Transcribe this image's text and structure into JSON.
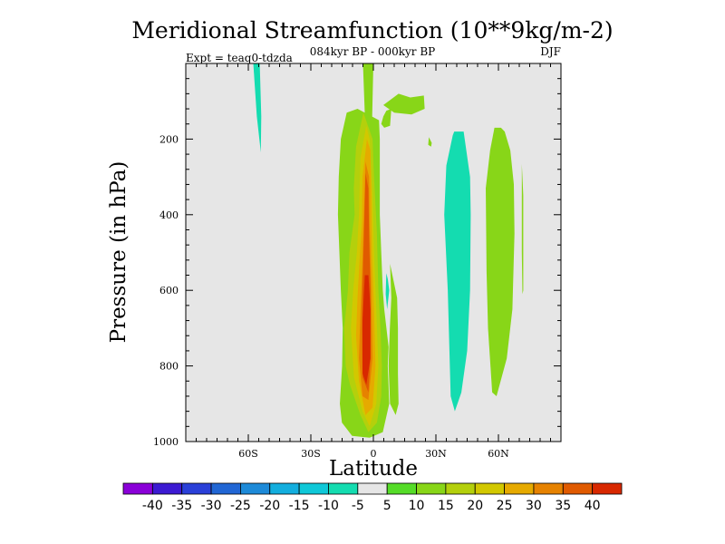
{
  "chart_data": {
    "type": "contour",
    "title": "Meridional Streamfunction (10**9kg/m-2)",
    "subtitle": "084kyr BP - 000kyr BP",
    "experiment": "Expt = teaq0-tdzda",
    "season": "DJF",
    "xlabel": "Latitude",
    "ylabel": "Pressure (in hPa)",
    "xlim": [
      -90,
      90
    ],
    "ylim": [
      1000,
      0
    ],
    "x_ticks": [
      {
        "value": -60,
        "label": "60S"
      },
      {
        "value": -30,
        "label": "30S"
      },
      {
        "value": 0,
        "label": "0"
      },
      {
        "value": 30,
        "label": "30N"
      },
      {
        "value": 60,
        "label": "60N"
      }
    ],
    "y_ticks": [
      {
        "value": 200,
        "label": "200"
      },
      {
        "value": 400,
        "label": "400"
      },
      {
        "value": 600,
        "label": "600"
      },
      {
        "value": 800,
        "label": "800"
      },
      {
        "value": 1000,
        "label": "1000"
      }
    ],
    "background_color": "#e6e6e6",
    "colorbar": {
      "labels": [
        "-40",
        "-35",
        "-30",
        "-25",
        "-20",
        "-15",
        "-10",
        "-5",
        "5",
        "10",
        "15",
        "20",
        "25",
        "30",
        "35",
        "40"
      ],
      "colors": [
        "#8a00d8",
        "#3c1ad2",
        "#2a40d8",
        "#2166d4",
        "#1d8ad8",
        "#13aede",
        "#0fc8d8",
        "#14dcb0",
        "#e6e6e6",
        "#55dc28",
        "#88d618",
        "#b4d00c",
        "#d2c800",
        "#e6aa00",
        "#e68200",
        "#e05a00",
        "#d82800"
      ]
    },
    "regions": [
      {
        "name": "sh-highlat-negative-cell",
        "level": -10,
        "polygon": [
          [
            -57.6,
            0
          ],
          [
            -54.5,
            0
          ],
          [
            -53.8,
            140
          ],
          [
            -54.0,
            235
          ],
          [
            -55.9,
            140
          ]
        ]
      },
      {
        "name": "tropical-band-tongue",
        "level": 10,
        "polygon": [
          [
            -5,
            0
          ],
          [
            0,
            0
          ],
          [
            -0.6,
            150
          ],
          [
            -4,
            150
          ]
        ]
      },
      {
        "name": "tropical-positive-band",
        "level": 10,
        "polygon": [
          [
            -7.6,
            120
          ],
          [
            -12.8,
            130
          ],
          [
            -15.6,
            200
          ],
          [
            -16.6,
            300
          ],
          [
            -17.0,
            400
          ],
          [
            -16.3,
            500
          ],
          [
            -15.6,
            600
          ],
          [
            -14.7,
            700
          ],
          [
            -15.0,
            800
          ],
          [
            -16.1,
            900
          ],
          [
            -15.1,
            950
          ],
          [
            -10.2,
            985
          ],
          [
            -1.8,
            990
          ],
          [
            4.5,
            975
          ],
          [
            7.6,
            900
          ],
          [
            6.9,
            800
          ],
          [
            7.3,
            750
          ],
          [
            5.2,
            650
          ],
          [
            4.5,
            600
          ],
          [
            3.8,
            500
          ],
          [
            3.1,
            400
          ],
          [
            3.1,
            300
          ],
          [
            3.1,
            200
          ],
          [
            2.7,
            150
          ]
        ]
      },
      {
        "name": "tropical-core-15",
        "level": 15,
        "polygon": [
          [
            -4.8,
            130
          ],
          [
            -8.3,
            220
          ],
          [
            -9.4,
            330
          ],
          [
            -9.0,
            400
          ],
          [
            -11.5,
            500
          ],
          [
            -12.2,
            600
          ],
          [
            -14.0,
            700
          ],
          [
            -13.3,
            800
          ],
          [
            -11.2,
            850
          ],
          [
            -6.2,
            930
          ],
          [
            -2.4,
            975
          ],
          [
            1.7,
            950
          ],
          [
            3.8,
            880
          ],
          [
            4.1,
            800
          ],
          [
            3.4,
            700
          ],
          [
            2.4,
            600
          ],
          [
            1.7,
            450
          ],
          [
            0.3,
            300
          ],
          [
            -0.4,
            200
          ]
        ]
      },
      {
        "name": "tropical-core-20",
        "level": 20,
        "polygon": [
          [
            -3.4,
            165
          ],
          [
            -6.2,
            250
          ],
          [
            -6.9,
            400
          ],
          [
            -7.9,
            500
          ],
          [
            -9.7,
            600
          ],
          [
            -10.8,
            700
          ],
          [
            -9.3,
            830
          ],
          [
            -5.2,
            920
          ],
          [
            -1.8,
            960
          ],
          [
            1.4,
            900
          ],
          [
            2.4,
            800
          ],
          [
            1.4,
            650
          ],
          [
            0.3,
            500
          ],
          [
            -0.4,
            350
          ],
          [
            -1.8,
            200
          ]
        ]
      },
      {
        "name": "tropical-core-25",
        "level": 25,
        "polygon": [
          [
            -3.1,
            200
          ],
          [
            -5.2,
            300
          ],
          [
            -5.5,
            420
          ],
          [
            -6.6,
            520
          ],
          [
            -7.6,
            620
          ],
          [
            -8.3,
            720
          ],
          [
            -6.9,
            840
          ],
          [
            -3.8,
            930
          ],
          [
            -0.4,
            910
          ],
          [
            1.0,
            800
          ],
          [
            0.3,
            650
          ],
          [
            -0.7,
            500
          ],
          [
            -1.0,
            350
          ],
          [
            -1.4,
            230
          ]
        ]
      },
      {
        "name": "tropical-core-30",
        "level": 30,
        "polygon": [
          [
            -3.8,
            260
          ],
          [
            -4.5,
            400
          ],
          [
            -5.5,
            560
          ],
          [
            -6.2,
            660
          ],
          [
            -6.9,
            780
          ],
          [
            -5.2,
            880
          ],
          [
            -2.4,
            890
          ],
          [
            -0.4,
            780
          ],
          [
            -1.0,
            600
          ],
          [
            -1.8,
            430
          ],
          [
            -2.1,
            300
          ]
        ]
      },
      {
        "name": "tropical-core-35",
        "level": 35,
        "polygon": [
          [
            -3.8,
            290
          ],
          [
            -4.5,
            450
          ],
          [
            -5.2,
            600
          ],
          [
            -5.5,
            700
          ],
          [
            -5.2,
            830
          ],
          [
            -2.4,
            870
          ],
          [
            -1.4,
            780
          ],
          [
            -1.4,
            600
          ],
          [
            -2.1,
            450
          ],
          [
            -2.4,
            330
          ]
        ]
      },
      {
        "name": "tropical-core-40",
        "level": 40,
        "polygon": [
          [
            -4.1,
            560
          ],
          [
            -5.2,
            680
          ],
          [
            -5.2,
            820
          ],
          [
            -3.4,
            850
          ],
          [
            -1.4,
            780
          ],
          [
            -1.4,
            650
          ],
          [
            -2.4,
            560
          ]
        ]
      },
      {
        "name": "tropical-patch-upper",
        "level": 10,
        "polygon": [
          [
            3.8,
            160
          ],
          [
            4.8,
            140
          ],
          [
            6.2,
            125
          ],
          [
            8.6,
            120
          ],
          [
            8.0,
            165
          ],
          [
            5.2,
            170
          ]
        ]
      },
      {
        "name": "tropical-patch-30n",
        "level": 10,
        "polygon": [
          [
            4.8,
            110
          ],
          [
            12.1,
            80
          ],
          [
            17.7,
            90
          ],
          [
            24.2,
            85
          ],
          [
            24.6,
            120
          ],
          [
            18.3,
            135
          ],
          [
            10.0,
            130
          ]
        ]
      },
      {
        "name": "tropical-patch-right",
        "level": 10,
        "polygon": [
          [
            26.6,
            195
          ],
          [
            28.0,
            210
          ],
          [
            27.7,
            220
          ],
          [
            26.3,
            215
          ]
        ]
      },
      {
        "name": "tropical-patch-small",
        "level": -10,
        "polygon": [
          [
            6.2,
            555
          ],
          [
            6.9,
            570
          ],
          [
            7.6,
            600
          ],
          [
            6.6,
            650
          ],
          [
            5.9,
            610
          ]
        ]
      },
      {
        "name": "tropical-patch-lower",
        "level": 10,
        "polygon": [
          [
            8.0,
            530
          ],
          [
            11.4,
            620
          ],
          [
            11.8,
            700
          ],
          [
            11.8,
            820
          ],
          [
            12.1,
            900
          ],
          [
            10.7,
            930
          ],
          [
            8.0,
            900
          ],
          [
            7.3,
            800
          ],
          [
            7.9,
            700
          ],
          [
            8.6,
            620
          ]
        ]
      },
      {
        "name": "nh-midlat-negative-cell",
        "level": -10,
        "polygon": [
          [
            38.1,
            190
          ],
          [
            35.0,
            270
          ],
          [
            34.0,
            400
          ],
          [
            35.7,
            600
          ],
          [
            36.4,
            740
          ],
          [
            37.1,
            880
          ],
          [
            39.1,
            920
          ],
          [
            42.2,
            870
          ],
          [
            45.0,
            760
          ],
          [
            46.4,
            600
          ],
          [
            46.7,
            400
          ],
          [
            46.4,
            300
          ],
          [
            43.3,
            180
          ],
          [
            38.8,
            180
          ]
        ]
      },
      {
        "name": "nh-subpolar-positive-cell",
        "level": 10,
        "polygon": [
          [
            58.1,
            170
          ],
          [
            56.0,
            230
          ],
          [
            53.9,
            330
          ],
          [
            54.3,
            550
          ],
          [
            55.0,
            700
          ],
          [
            57.0,
            870
          ],
          [
            59.1,
            880
          ],
          [
            64.0,
            780
          ],
          [
            66.7,
            650
          ],
          [
            67.7,
            450
          ],
          [
            67.4,
            320
          ],
          [
            65.7,
            230
          ],
          [
            63.0,
            180
          ],
          [
            61.2,
            170
          ]
        ]
      },
      {
        "name": "nh-polar-positive-sliver",
        "level": 10,
        "polygon": [
          [
            71.2,
            265
          ],
          [
            71.5,
            300
          ],
          [
            71.9,
            350
          ],
          [
            71.9,
            450
          ],
          [
            71.9,
            600
          ],
          [
            71.5,
            610
          ],
          [
            71.2,
            500
          ],
          [
            71.2,
            350
          ]
        ]
      }
    ]
  }
}
